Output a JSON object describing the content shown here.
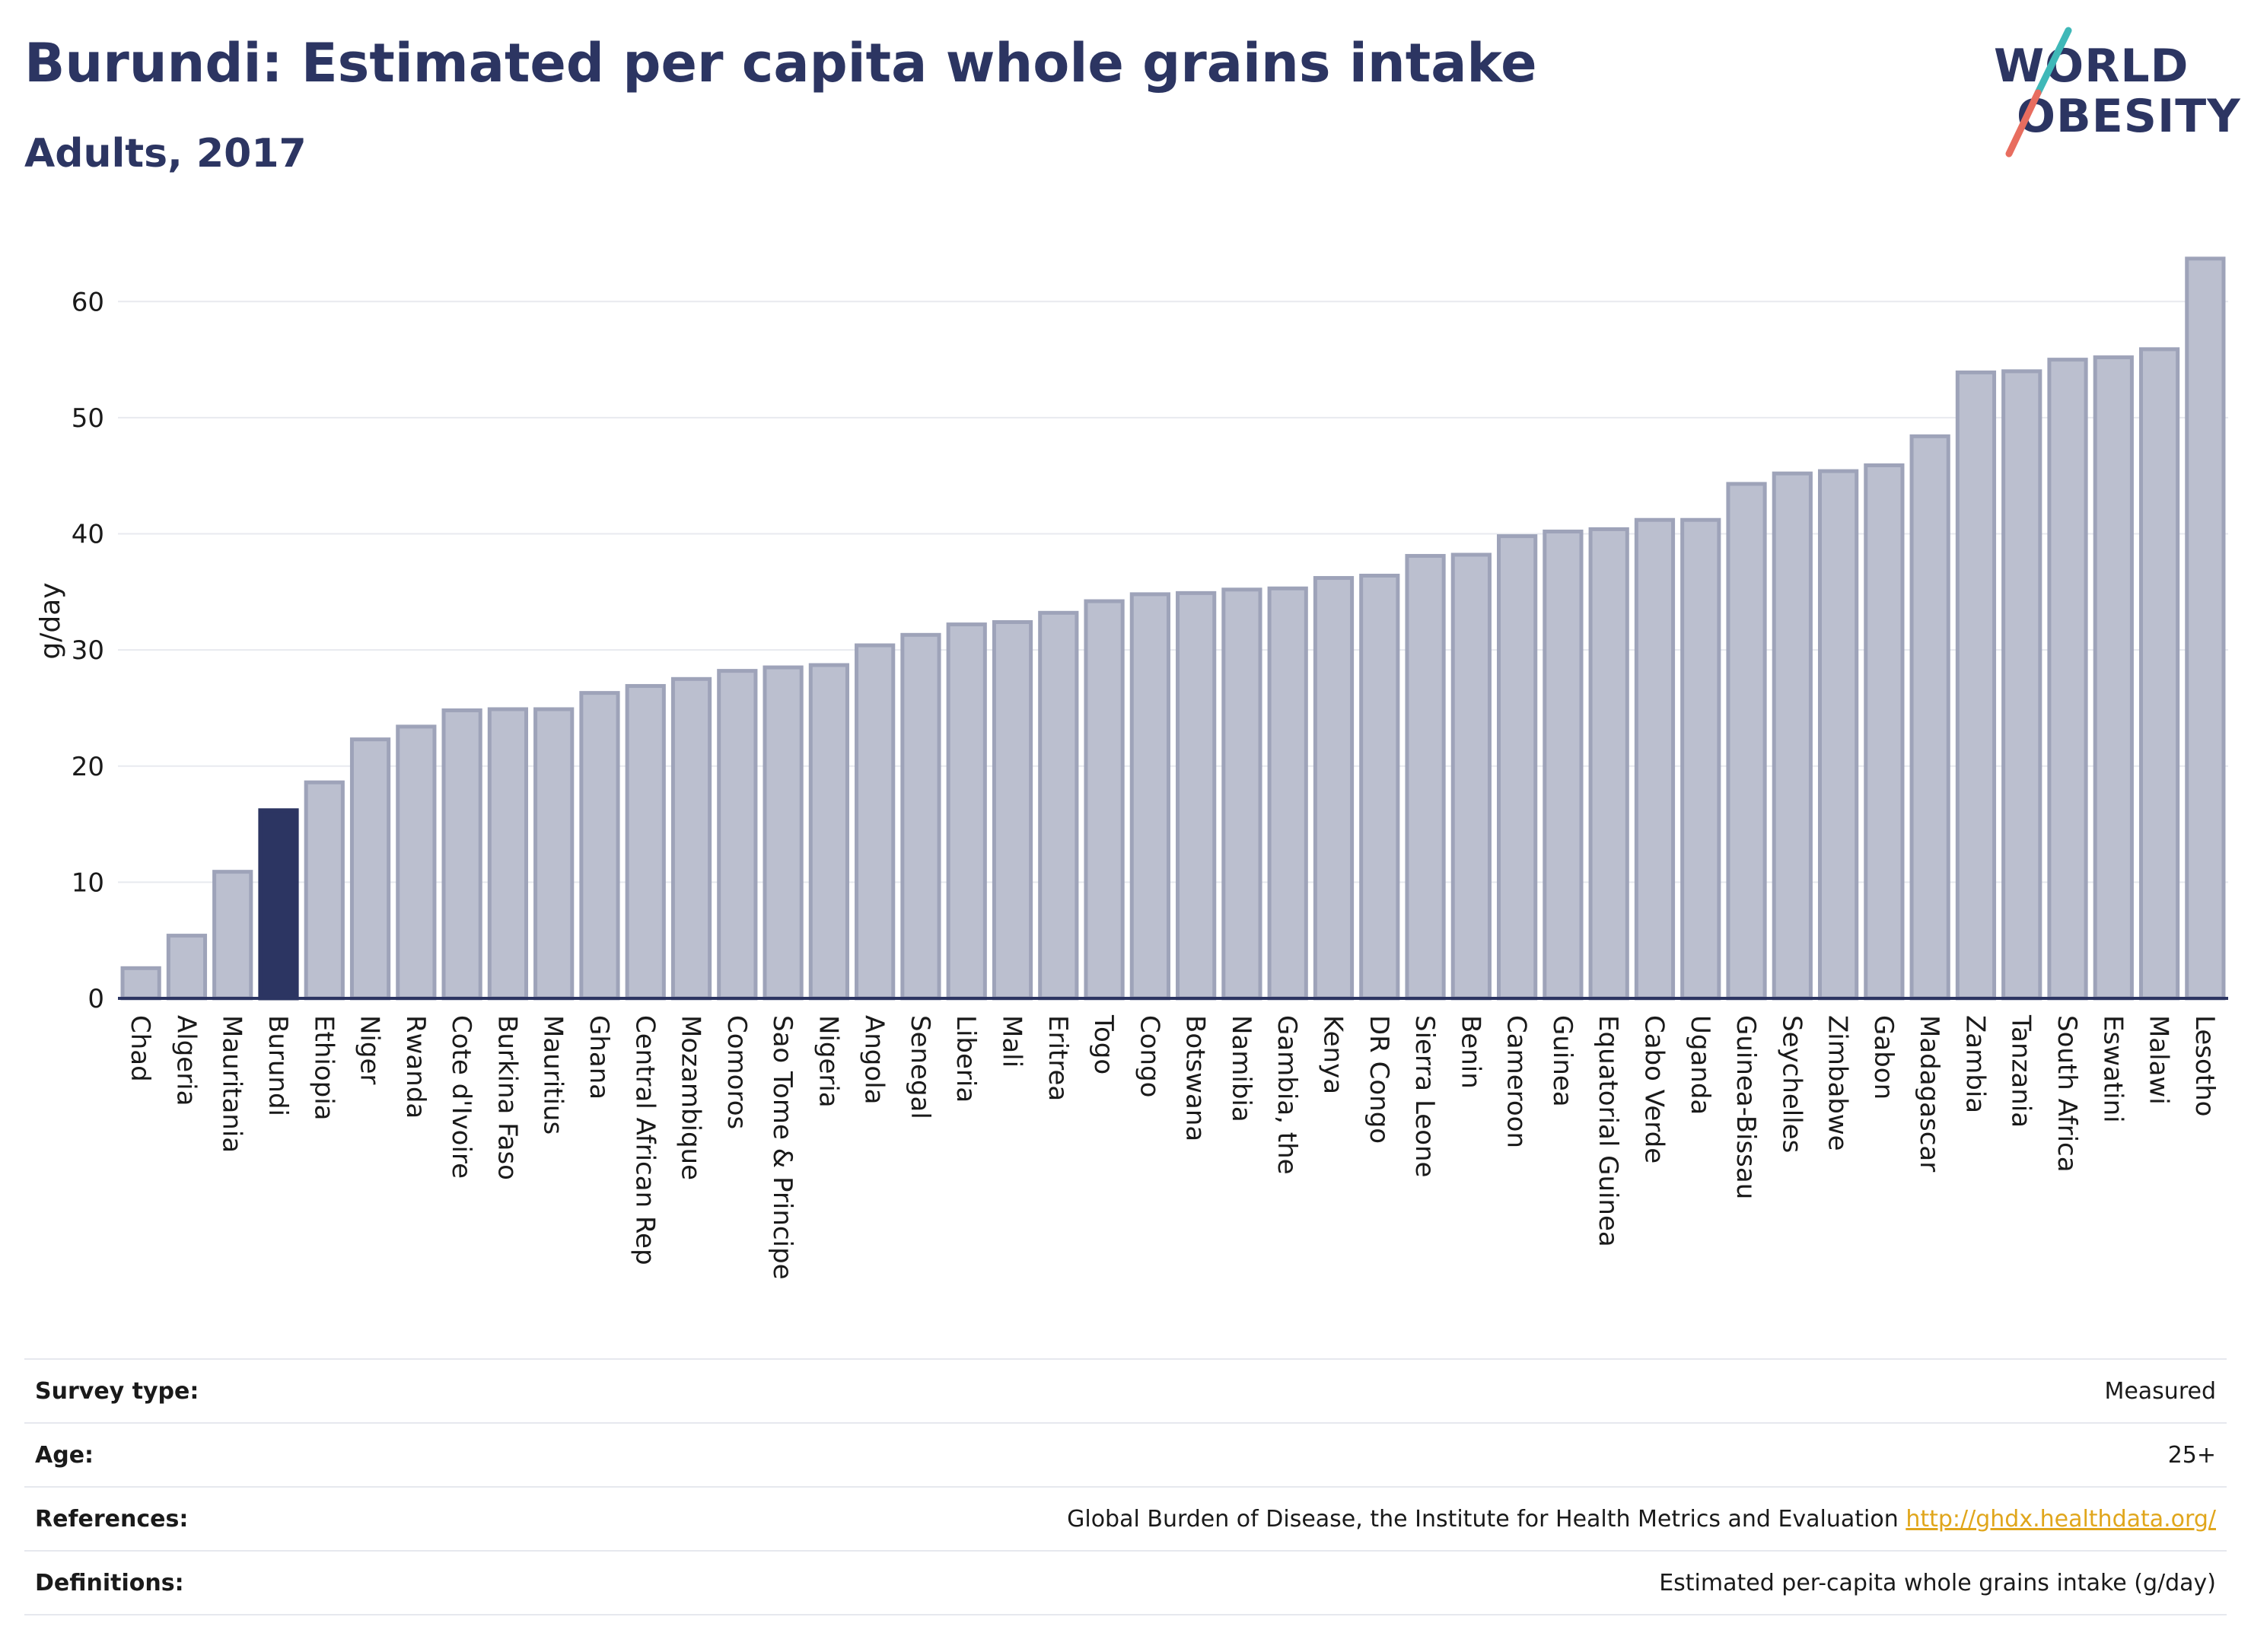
{
  "header": {
    "title": "Burundi: Estimated per capita whole grains intake",
    "subtitle": "Adults, 2017"
  },
  "logo": {
    "line1": "WORLD",
    "line2": "OBESITY"
  },
  "colors": {
    "bar": "#bbbfcf",
    "bar_stroke": "#9ea3b9",
    "highlight": "#2c3562",
    "grid": "#e8eaef",
    "axis": "#2c3562",
    "logo_teal": "#3fb8b8",
    "logo_coral": "#e86d5f",
    "link": "#e0a61c"
  },
  "chart_data": {
    "type": "bar",
    "ylabel": "g/day",
    "ylim": [
      0,
      65
    ],
    "yticks": [
      0,
      10,
      20,
      30,
      40,
      50,
      60
    ],
    "grid": true,
    "highlight": "Burundi",
    "categories": [
      "Chad",
      "Algeria",
      "Mauritania",
      "Burundi",
      "Ethiopia",
      "Niger",
      "Rwanda",
      "Cote d'Ivoire",
      "Burkina Faso",
      "Mauritius",
      "Ghana",
      "Central African Rep",
      "Mozambique",
      "Comoros",
      "Sao Tome & Principe",
      "Nigeria",
      "Angola",
      "Senegal",
      "Liberia",
      "Mali",
      "Eritrea",
      "Togo",
      "Congo",
      "Botswana",
      "Namibia",
      "Gambia, the",
      "Kenya",
      "DR Congo",
      "Sierra Leone",
      "Benin",
      "Cameroon",
      "Guinea",
      "Equatorial Guinea",
      "Cabo Verde",
      "Uganda",
      "Guinea-Bissau",
      "Seychelles",
      "Zimbabwe",
      "Gabon",
      "Madagascar",
      "Zambia",
      "Tanzania",
      "South Africa",
      "Eswatini",
      "Malawi",
      "Lesotho"
    ],
    "values": [
      2.6,
      5.4,
      10.9,
      16.2,
      18.6,
      22.3,
      23.4,
      24.8,
      24.9,
      24.9,
      26.3,
      26.9,
      27.5,
      28.2,
      28.5,
      28.7,
      30.4,
      31.3,
      32.2,
      32.4,
      33.2,
      34.2,
      34.8,
      34.9,
      35.2,
      35.3,
      36.2,
      36.4,
      38.1,
      38.2,
      39.8,
      40.2,
      40.4,
      41.2,
      41.2,
      44.3,
      45.2,
      45.4,
      45.9,
      48.4,
      53.9,
      54.0,
      55.0,
      55.2,
      55.9,
      63.7
    ]
  },
  "info": {
    "survey_type_label": "Survey type:",
    "survey_type_value": "Measured",
    "age_label": "Age:",
    "age_value": "25+",
    "references_label": "References:",
    "references_text": "Global Burden of Disease, the Institute for Health Metrics and Evaluation",
    "references_link": "http://ghdx.healthdata.org/",
    "definitions_label": "Definitions:",
    "definitions_value": "Estimated per-capita whole grains intake (g/day)"
  }
}
